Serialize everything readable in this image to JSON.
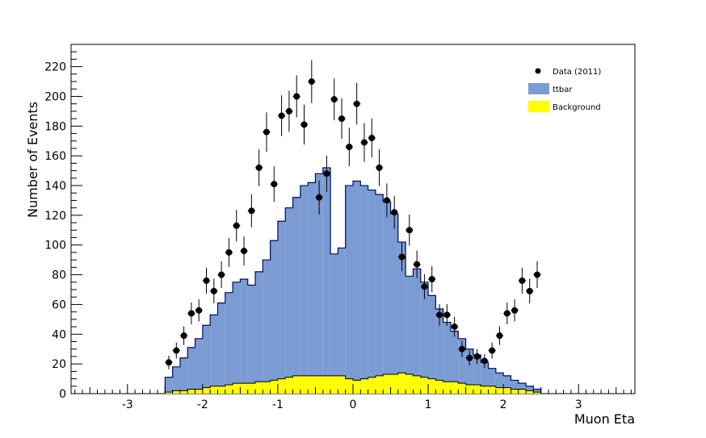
{
  "chart_data": {
    "type": "bar",
    "xlabel": "Muon Eta",
    "ylabel": "Number of Events",
    "xlim": [
      -3.75,
      3.75
    ],
    "ylim": [
      0,
      235
    ],
    "x_ticks": [
      -3,
      -2,
      -1,
      0,
      1,
      2,
      3
    ],
    "y_ticks": [
      0,
      20,
      40,
      60,
      80,
      100,
      120,
      140,
      160,
      180,
      200,
      220
    ],
    "grid": false,
    "legend_position": "top-right",
    "bin_edges": [
      -2.5,
      -2.4,
      -2.3,
      -2.2,
      -2.1,
      -2.0,
      -1.9,
      -1.8,
      -1.7,
      -1.6,
      -1.5,
      -1.4,
      -1.3,
      -1.2,
      -1.1,
      -1.0,
      -0.9,
      -0.8,
      -0.7,
      -0.6,
      -0.5,
      -0.4,
      -0.3,
      -0.2,
      -0.1,
      0.0,
      0.1,
      0.2,
      0.3,
      0.4,
      0.5,
      0.6,
      0.7,
      0.8,
      0.9,
      1.0,
      1.1,
      1.2,
      1.3,
      1.4,
      1.5,
      1.6,
      1.7,
      1.8,
      1.9,
      2.0,
      2.1,
      2.2,
      2.3,
      2.4,
      2.5
    ],
    "series": [
      {
        "name": "Background",
        "kind": "stack",
        "color": "#ffff00",
        "values": [
          1,
          2,
          2,
          3,
          3,
          4,
          5,
          5,
          6,
          7,
          7,
          7,
          8,
          8,
          9,
          10,
          11,
          12,
          12,
          12,
          12,
          12,
          12,
          12,
          10,
          9,
          10,
          11,
          12,
          13,
          13,
          14,
          13,
          12,
          11,
          10,
          9,
          8,
          8,
          7,
          6,
          6,
          5,
          5,
          4,
          4,
          3,
          3,
          2,
          1
        ]
      },
      {
        "name": "ttbar",
        "kind": "stack",
        "color": "#7b9bd3",
        "values": [
          10,
          16,
          22,
          28,
          34,
          42,
          48,
          56,
          62,
          68,
          70,
          66,
          74,
          82,
          94,
          106,
          114,
          120,
          128,
          130,
          136,
          140,
          82,
          86,
          130,
          134,
          130,
          126,
          122,
          116,
          108,
          88,
          66,
          72,
          64,
          56,
          48,
          40,
          34,
          30,
          24,
          20,
          16,
          12,
          10,
          8,
          6,
          4,
          3,
          2
        ]
      },
      {
        "name": "Data (2011)",
        "kind": "points",
        "color": "#000000",
        "x": [
          -2.45,
          -2.35,
          -2.25,
          -2.15,
          -2.05,
          -1.95,
          -1.85,
          -1.75,
          -1.65,
          -1.55,
          -1.45,
          -1.35,
          -1.25,
          -1.15,
          -1.05,
          -0.95,
          -0.85,
          -0.75,
          -0.65,
          -0.55,
          -0.45,
          -0.35,
          -0.25,
          -0.15,
          -0.05,
          0.05,
          0.15,
          0.25,
          0.35,
          0.45,
          0.55,
          0.65,
          0.75,
          0.85,
          0.95,
          1.05,
          1.15,
          1.25,
          1.35,
          1.45,
          1.55,
          1.65,
          1.75,
          1.85,
          1.95,
          2.05,
          2.15,
          2.25,
          2.35,
          2.45
        ],
        "values": [
          21,
          29,
          39,
          54,
          56,
          76,
          69,
          80,
          95,
          113,
          96,
          123,
          152,
          176,
          141,
          187,
          190,
          200,
          181,
          210,
          132,
          148,
          198,
          185,
          166,
          195,
          169,
          172,
          152,
          130,
          122,
          92,
          110,
          87,
          72,
          77,
          53,
          53,
          45,
          30,
          24,
          25,
          22,
          29,
          39,
          54,
          56,
          76,
          69,
          80
        ]
      }
    ]
  }
}
